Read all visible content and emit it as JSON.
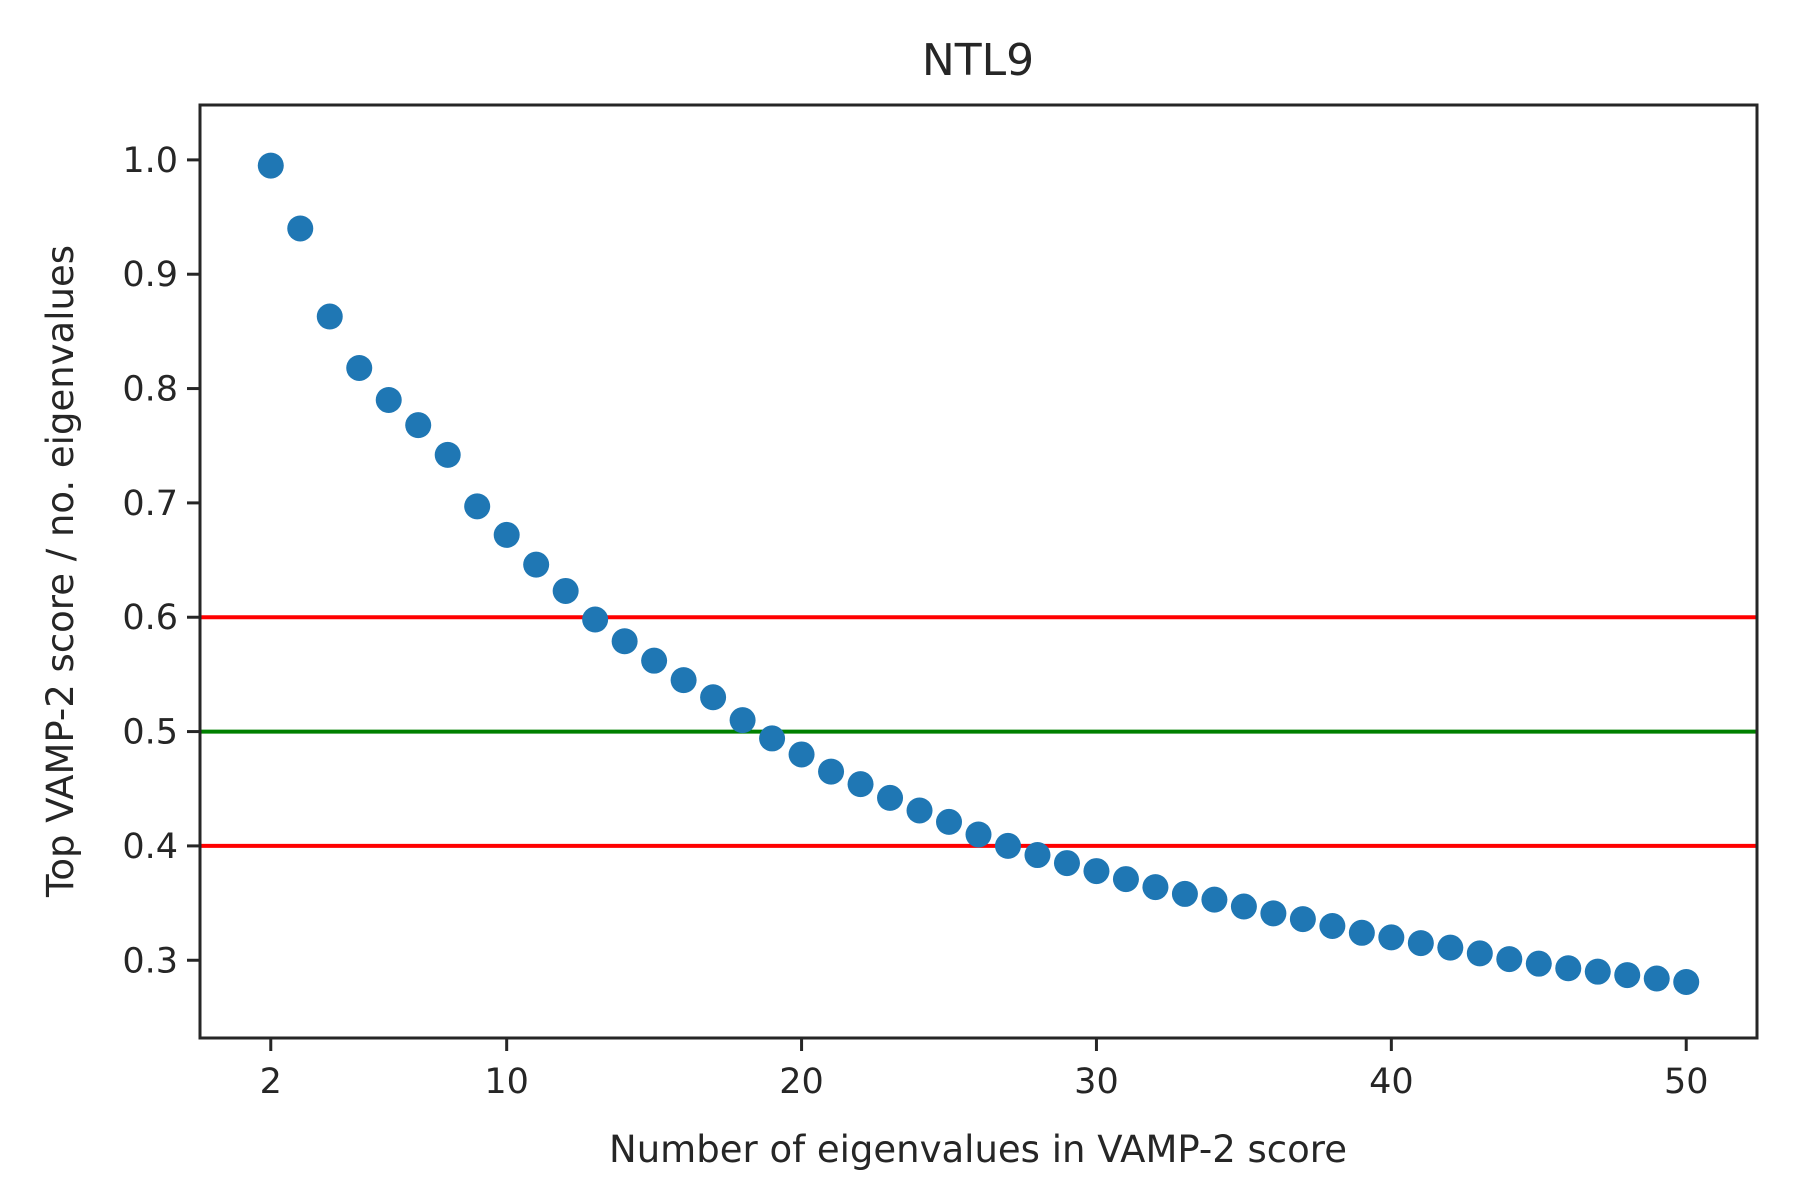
{
  "chart_data": {
    "type": "scatter",
    "title": "NTL9",
    "xlabel": "Number of eigenvalues in VAMP-2 score",
    "ylabel": "Top VAMP-2 score / no. eigenvalues",
    "xlim": [
      -0.4,
      52.4
    ],
    "ylim": [
      0.232,
      1.048
    ],
    "x_ticks": [
      2,
      10,
      20,
      30,
      40,
      50
    ],
    "y_ticks": [
      0.3,
      0.4,
      0.5,
      0.6,
      0.7,
      0.8,
      0.9,
      1.0
    ],
    "x_tick_labels": [
      "2",
      "10",
      "20",
      "30",
      "40",
      "50"
    ],
    "y_tick_labels": [
      "0.3",
      "0.4",
      "0.5",
      "0.6",
      "0.7",
      "0.8",
      "0.9",
      "1.0"
    ],
    "grid": false,
    "series": [
      {
        "color": "#1f77b4",
        "x": [
          2,
          3,
          4,
          5,
          6,
          7,
          8,
          9,
          10,
          11,
          12,
          13,
          14,
          15,
          16,
          17,
          18,
          19,
          20,
          21,
          22,
          23,
          24,
          25,
          26,
          27,
          28,
          29,
          30,
          31,
          32,
          33,
          34,
          35,
          36,
          37,
          38,
          39,
          40,
          41,
          42,
          43,
          44,
          45,
          46,
          47,
          48,
          49,
          50
        ],
        "y": [
          0.995,
          0.94,
          0.863,
          0.818,
          0.79,
          0.768,
          0.742,
          0.697,
          0.672,
          0.646,
          0.623,
          0.598,
          0.579,
          0.562,
          0.545,
          0.53,
          0.51,
          0.494,
          0.48,
          0.465,
          0.454,
          0.442,
          0.431,
          0.421,
          0.41,
          0.4,
          0.392,
          0.385,
          0.378,
          0.371,
          0.364,
          0.358,
          0.353,
          0.347,
          0.341,
          0.336,
          0.33,
          0.324,
          0.32,
          0.315,
          0.311,
          0.306,
          0.301,
          0.297,
          0.293,
          0.29,
          0.287,
          0.284,
          0.281
        ]
      }
    ],
    "hlines": [
      {
        "y": 0.6,
        "color": "#ff0000"
      },
      {
        "y": 0.5,
        "color": "#008000"
      },
      {
        "y": 0.4,
        "color": "#ff0000"
      }
    ]
  }
}
